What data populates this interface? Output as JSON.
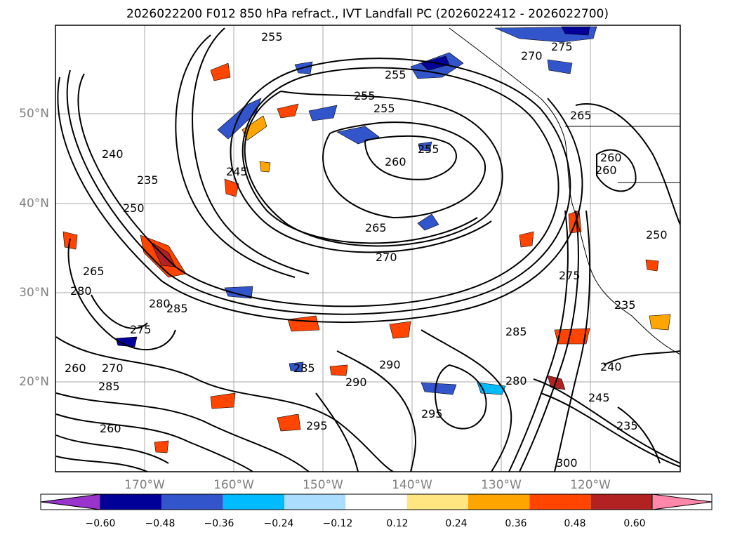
{
  "title": "2026022200 F012 850 hPa refract., IVT Landfall PC (2026022412 - 2026022700)",
  "lat_labels": [
    "50°N",
    "40°N",
    "30°N",
    "20°N"
  ],
  "lon_labels": [
    "170°W",
    "160°W",
    "150°W",
    "140°W",
    "130°W",
    "120°W"
  ],
  "contour_labels": [
    "255",
    "255",
    "255",
    "255",
    "270",
    "275",
    "265",
    "255",
    "260",
    "260",
    "245",
    "235",
    "240",
    "250",
    "260",
    "265",
    "270",
    "280",
    "285",
    "275",
    "265",
    "280",
    "285",
    "290",
    "295",
    "300",
    "260",
    "270",
    "285",
    "290",
    "295",
    "285",
    "275",
    "240",
    "245",
    "235",
    "235",
    "250",
    "260",
    "280"
  ],
  "colorbar": {
    "ticks": [
      "−0.60",
      "−0.48",
      "−0.36",
      "−0.24",
      "−0.12",
      "0.12",
      "0.24",
      "0.36",
      "0.48",
      "0.60"
    ],
    "colors": [
      "#9933cc",
      "#000099",
      "#3355cc",
      "#00bbff",
      "#aaddff",
      "#ffffff",
      "#ffe680",
      "#ffa500",
      "#ff4500",
      "#b22222",
      "#ff88aa"
    ]
  }
}
